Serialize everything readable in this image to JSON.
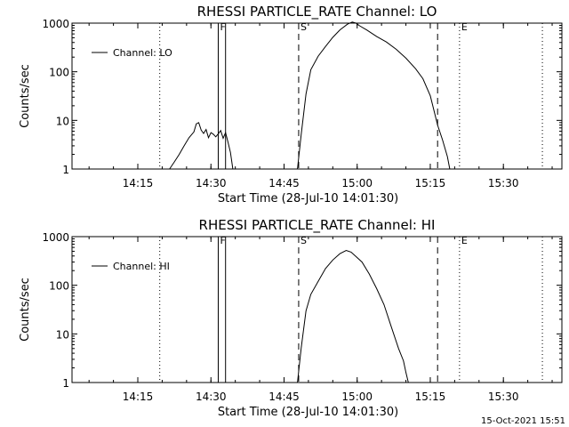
{
  "footer": {
    "timestamp": "15-Oct-2021 15:51"
  },
  "chart_data": [
    {
      "type": "line",
      "title": "RHESSI PARTICLE_RATE Channel: LO",
      "xlabel": "Start Time (28-Jul-10 14:01:30)",
      "ylabel": "Counts/sec",
      "y_scale": "log",
      "ylim": [
        1,
        1000
      ],
      "xlim": [
        "14:01:30",
        "15:42:00"
      ],
      "xticks": [
        "14:15",
        "14:30",
        "14:45",
        "15:00",
        "15:15",
        "15:30"
      ],
      "yticks": [
        "1",
        "10",
        "100",
        "1000"
      ],
      "legend": {
        "placement": "top-left",
        "entries": [
          "Channel: LO"
        ]
      },
      "markers": [
        {
          "label": "F",
          "times": [
            "14:31:30",
            "14:33:00"
          ],
          "style": "solid"
        },
        {
          "label": "S",
          "times": [
            "14:48:00"
          ],
          "style": "dashed"
        },
        {
          "label": "",
          "times": [
            "15:16:30"
          ],
          "style": "dashed"
        },
        {
          "label": "E",
          "times": [
            "15:21:00"
          ],
          "style": "dotted"
        },
        {
          "label": "",
          "times": [
            "14:19:30",
            "15:38:00"
          ],
          "style": "dotted"
        }
      ],
      "series": [
        {
          "name": "Channel: LO",
          "segments": [
            {
              "x": [
                "14:21:30",
                "14:22:30",
                "14:23:30",
                "14:24:30",
                "14:25:30",
                "14:26:30",
                "14:27:00",
                "14:27:30",
                "14:28:00",
                "14:28:30",
                "14:29:00",
                "14:29:30",
                "14:30:00",
                "14:30:30",
                "14:31:00",
                "14:31:30",
                "14:32:00",
                "14:32:30",
                "14:33:00",
                "14:33:30",
                "14:34:00",
                "14:34:30"
              ],
              "y": [
                1.0,
                1.4,
                2.0,
                3.0,
                4.4,
                5.8,
                8.5,
                9.0,
                6.3,
                5.4,
                6.5,
                4.4,
                5.6,
                5.2,
                4.6,
                5.3,
                6.2,
                4.3,
                5.6,
                3.6,
                2.2,
                1.0
              ]
            },
            {
              "x": [
                "14:47:45",
                "14:48:30",
                "14:49:30",
                "14:50:30",
                "14:52:00",
                "14:53:30",
                "14:55:00",
                "14:56:30",
                "14:58:00",
                "14:59:00",
                "14:59:45",
                "15:00:30",
                "15:02:00",
                "15:04:00",
                "15:06:00",
                "15:08:00",
                "15:10:00",
                "15:12:00",
                "15:13:30",
                "15:15:00",
                "15:16:30",
                "15:17:30",
                "15:18:30",
                "15:19:00"
              ],
              "y": [
                1.0,
                5.0,
                35,
                110,
                210,
                330,
                510,
                730,
                950,
                1050,
                1000,
                880,
                720,
                530,
                410,
                290,
                190,
                115,
                72,
                32,
                8,
                4,
                1.8,
                1.0
              ]
            }
          ]
        }
      ]
    },
    {
      "type": "line",
      "title": "RHESSI PARTICLE_RATE Channel: HI",
      "xlabel": "Start Time (28-Jul-10 14:01:30)",
      "ylabel": "Counts/sec",
      "y_scale": "log",
      "ylim": [
        1,
        1000
      ],
      "xlim": [
        "14:01:30",
        "15:42:00"
      ],
      "xticks": [
        "14:15",
        "14:30",
        "14:45",
        "15:00",
        "15:15",
        "15:30"
      ],
      "yticks": [
        "1",
        "10",
        "100",
        "1000"
      ],
      "legend": {
        "placement": "top-left",
        "entries": [
          "Channel: HI"
        ]
      },
      "markers": [
        {
          "label": "F",
          "times": [
            "14:31:30",
            "14:33:00"
          ],
          "style": "solid"
        },
        {
          "label": "S",
          "times": [
            "14:48:00"
          ],
          "style": "dashed"
        },
        {
          "label": "",
          "times": [
            "15:16:30"
          ],
          "style": "dashed"
        },
        {
          "label": "E",
          "times": [
            "15:21:00"
          ],
          "style": "dotted"
        },
        {
          "label": "",
          "times": [
            "14:19:30",
            "15:38:00"
          ],
          "style": "dotted"
        }
      ],
      "series": [
        {
          "name": "Channel: HI",
          "segments": [
            {
              "x": [
                "14:47:45",
                "14:48:30",
                "14:49:30",
                "14:50:30",
                "14:52:00",
                "14:53:30",
                "14:55:00",
                "14:56:30",
                "14:57:45",
                "14:58:45",
                "14:59:45",
                "15:01:00",
                "15:02:30",
                "15:04:00",
                "15:05:30",
                "15:07:00",
                "15:08:30",
                "15:09:30",
                "15:10:00",
                "15:10:30"
              ],
              "y": [
                1.0,
                5.0,
                30,
                65,
                120,
                220,
                330,
                450,
                520,
                480,
                390,
                300,
                170,
                85,
                40,
                14,
                5,
                2.8,
                1.6,
                1.0
              ]
            }
          ]
        }
      ]
    }
  ]
}
